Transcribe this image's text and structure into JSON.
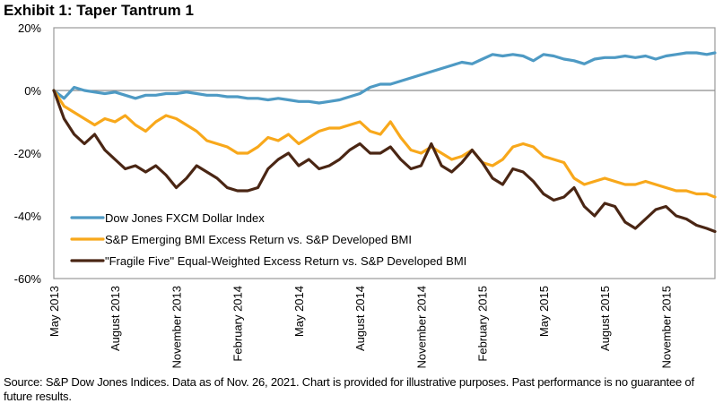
{
  "header": {
    "title": "Exhibit 1: Taper Tantrum 1"
  },
  "footer": {
    "source": "Source: S&P Dow Jones Indices. Data as of Nov. 26, 2021. Chart is provided for illustrative purposes. Past performance is no guarantee of future results."
  },
  "chart_data": {
    "type": "line",
    "title": "Exhibit 1: Taper Tantrum 1",
    "xlabel": "",
    "ylabel": "",
    "ylim": [
      -60,
      20
    ],
    "yticks": [
      20,
      0,
      -20,
      -40,
      -60
    ],
    "ytick_labels": [
      "20%",
      "0%",
      "-20%",
      "-40%",
      "-60%"
    ],
    "xtick_labels": [
      "May 2013",
      "August 2013",
      "November 2013",
      "February 2014",
      "May 2014",
      "August 2014",
      "November 2014",
      "February 2015",
      "May 2015",
      "August 2015",
      "November 2015"
    ],
    "x_unit": "months since May 2013",
    "xlim": [
      0,
      32.4
    ],
    "zero_line": true,
    "grid": false,
    "legend_position": "bottom-left",
    "x": [
      0,
      0.5,
      1,
      1.5,
      2,
      2.5,
      3,
      3.5,
      4,
      4.5,
      5,
      5.5,
      6,
      6.5,
      7,
      7.5,
      8,
      8.5,
      9,
      9.5,
      10,
      10.5,
      11,
      11.5,
      12,
      12.5,
      13,
      13.5,
      14,
      14.5,
      15,
      15.5,
      16,
      16.5,
      17,
      17.5,
      18,
      18.5,
      19,
      19.5,
      20,
      20.5,
      21,
      21.5,
      22,
      22.5,
      23,
      23.5,
      24,
      24.5,
      25,
      25.5,
      26,
      26.5,
      27,
      27.5,
      28,
      28.5,
      29,
      29.5,
      30,
      30.5,
      31,
      31.5,
      32,
      32.4
    ],
    "series": [
      {
        "name": "Dow Jones FXCM Dollar Index",
        "color": "#4e9ac4",
        "values": [
          0,
          -2.5,
          1,
          0,
          -0.5,
          -1,
          -0.5,
          -1.5,
          -2.5,
          -1.5,
          -1.5,
          -1,
          -1,
          -0.5,
          -1,
          -1.5,
          -1.5,
          -2,
          -2,
          -2.5,
          -2.5,
          -3,
          -2.5,
          -3,
          -3.5,
          -3.5,
          -4,
          -3.5,
          -3,
          -2,
          -1,
          1,
          2,
          2,
          3,
          4,
          5,
          6,
          7,
          8,
          9,
          8.5,
          10,
          11.5,
          11,
          11.5,
          11,
          9.5,
          11.5,
          11,
          10,
          9.5,
          8.5,
          10,
          10.5,
          10.5,
          11,
          10.5,
          11,
          10,
          11,
          11.5,
          12,
          12,
          11.5,
          12
        ]
      },
      {
        "name": "S&P Emerging BMI Excess Return vs. S&P Developed BMI",
        "color": "#f8a81b",
        "values": [
          0,
          -5,
          -7,
          -9,
          -11,
          -9,
          -10,
          -8,
          -11,
          -13,
          -10,
          -8,
          -9,
          -11,
          -13,
          -16,
          -17,
          -18,
          -20,
          -20,
          -18,
          -15,
          -16,
          -14,
          -17,
          -15,
          -13,
          -12,
          -12,
          -11,
          -10,
          -13,
          -14,
          -10,
          -15,
          -19,
          -20,
          -18,
          -20,
          -22,
          -21,
          -19,
          -23,
          -24,
          -22,
          -18,
          -17,
          -18,
          -21,
          -22,
          -23,
          -28,
          -30,
          -29,
          -28,
          -29,
          -30,
          -30,
          -29,
          -30,
          -31,
          -32,
          -32,
          -33,
          -33,
          -34
        ]
      },
      {
        "name": "\"Fragile Five\" Equal-Weighted Excess Return vs. S&P Developed BMI",
        "color": "#4a2614",
        "values": [
          0,
          -9,
          -14,
          -17,
          -14,
          -19,
          -22,
          -25,
          -24,
          -26,
          -24,
          -27,
          -31,
          -28,
          -24,
          -26,
          -28,
          -31,
          -32,
          -32,
          -31,
          -25,
          -22,
          -20,
          -24,
          -22,
          -25,
          -24,
          -22,
          -19,
          -17,
          -20,
          -20,
          -18,
          -22,
          -25,
          -24,
          -17,
          -24,
          -26,
          -23,
          -19,
          -23,
          -28,
          -30,
          -25,
          -26,
          -29,
          -33,
          -35,
          -34,
          -31,
          -37,
          -40,
          -36,
          -37,
          -42,
          -44,
          -41,
          -38,
          -37,
          -40,
          -41,
          -43,
          -44,
          -45
        ]
      }
    ]
  }
}
